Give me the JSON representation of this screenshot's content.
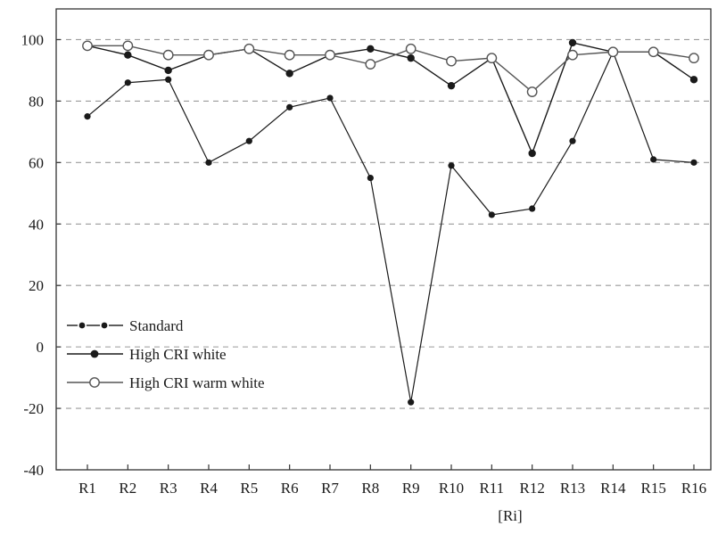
{
  "chart_data": {
    "type": "line",
    "title": "",
    "xlabel": "[Ri]",
    "ylabel": "",
    "categories": [
      "R1",
      "R2",
      "R3",
      "R4",
      "R5",
      "R6",
      "R7",
      "R8",
      "R9",
      "R10",
      "R11",
      "R12",
      "R13",
      "R14",
      "R15",
      "R16"
    ],
    "ylim": [
      -40,
      110
    ],
    "yticks": [
      -40,
      -20,
      0,
      20,
      40,
      60,
      80,
      100
    ],
    "grid": "horizontal dashed",
    "legend_position": "lower-left",
    "series": [
      {
        "name": "Standard",
        "line_style": "dash-dot",
        "marker": "filled-small",
        "color": "#1a1a1a",
        "values": [
          75,
          86,
          87,
          60,
          67,
          78,
          81,
          55,
          -18,
          59,
          43,
          45,
          67,
          96,
          61,
          60
        ]
      },
      {
        "name": "High CRI white",
        "line_style": "solid",
        "marker": "filled",
        "color": "#1a1a1a",
        "values": [
          98,
          95,
          90,
          95,
          97,
          89,
          95,
          97,
          94,
          85,
          94,
          63,
          99,
          96,
          96,
          87
        ]
      },
      {
        "name": "High CRI warm white",
        "line_style": "solid",
        "marker": "hollow",
        "color": "#555555",
        "values": [
          98,
          98,
          95,
          95,
          97,
          95,
          95,
          92,
          97,
          93,
          94,
          83,
          95,
          96,
          96,
          94
        ]
      }
    ]
  }
}
